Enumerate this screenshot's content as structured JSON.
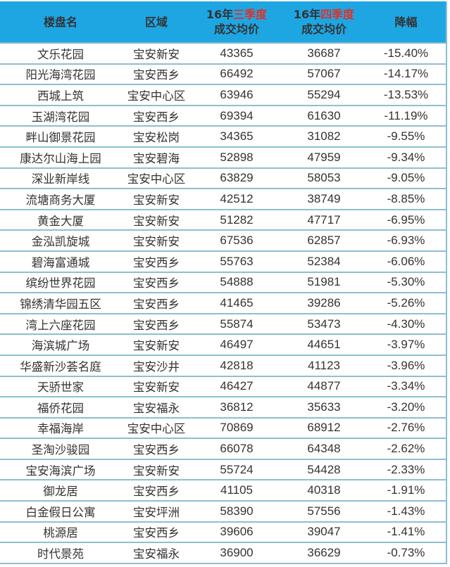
{
  "header": {
    "name": "楼盘名",
    "region": "区域",
    "q3_prefix": "16年",
    "q3_highlight": "三季度",
    "q3_suffix": "成交均价",
    "q4_prefix": "16年",
    "q4_highlight": "四季度",
    "q4_suffix": "成交均价",
    "drop": "降幅"
  },
  "colors": {
    "header_bg": "#1ea6e3",
    "highlight": "#e0302a",
    "border": "#8dbfd0"
  },
  "rows": [
    [
      "文乐花园",
      "宝安新安",
      "43365",
      "36687",
      "-15.40%"
    ],
    [
      "阳光海湾花园",
      "宝安西乡",
      "66492",
      "57067",
      "-14.17%"
    ],
    [
      "西城上筑",
      "宝安中心区",
      "63946",
      "55294",
      "-13.53%"
    ],
    [
      "玉湖湾花园",
      "宝安西乡",
      "69394",
      "61630",
      "-11.19%"
    ],
    [
      "畔山御景花园",
      "宝安松岗",
      "34365",
      "31082",
      "-9.55%"
    ],
    [
      "康达尔山海上园",
      "宝安碧海",
      "52898",
      "47959",
      "-9.34%"
    ],
    [
      "深业新岸线",
      "宝安中心区",
      "63829",
      "58053",
      "-9.05%"
    ],
    [
      "流塘商务大厦",
      "宝安新安",
      "42512",
      "38749",
      "-8.85%"
    ],
    [
      "黄金大厦",
      "宝安新安",
      "51282",
      "47717",
      "-6.95%"
    ],
    [
      "金泓凯旋城",
      "宝安新安",
      "67536",
      "62857",
      "-6.93%"
    ],
    [
      "碧海富通城",
      "宝安西乡",
      "55763",
      "52384",
      "-6.06%"
    ],
    [
      "缤纷世界花园",
      "宝安西乡",
      "54888",
      "51981",
      "-5.30%"
    ],
    [
      "锦绣清华园五区",
      "宝安西乡",
      "41465",
      "39286",
      "-5.26%"
    ],
    [
      "湾上六座花园",
      "宝安西乡",
      "55874",
      "53473",
      "-4.30%"
    ],
    [
      "海滨城广场",
      "宝安新安",
      "46497",
      "44651",
      "-3.97%"
    ],
    [
      "华盛新沙荟名庭",
      "宝安沙井",
      "42818",
      "41123",
      "-3.96%"
    ],
    [
      "天骄世家",
      "宝安新安",
      "46427",
      "44877",
      "-3.34%"
    ],
    [
      "福侨花园",
      "宝安福永",
      "36812",
      "35633",
      "-3.20%"
    ],
    [
      "幸福海岸",
      "宝安中心区",
      "70869",
      "68912",
      "-2.76%"
    ],
    [
      "圣淘沙骏园",
      "宝安西乡",
      "66078",
      "64348",
      "-2.62%"
    ],
    [
      "宝安海滨广场",
      "宝安新安",
      "55724",
      "54428",
      "-2.33%"
    ],
    [
      "御龙居",
      "宝安西乡",
      "41105",
      "40318",
      "-1.91%"
    ],
    [
      "白金假日公寓",
      "宝安坪洲",
      "58390",
      "57556",
      "-1.43%"
    ],
    [
      "桃源居",
      "宝安西乡",
      "39606",
      "39047",
      "-1.41%"
    ],
    [
      "时代景苑",
      "宝安福永",
      "36900",
      "36629",
      "-0.73%"
    ]
  ]
}
